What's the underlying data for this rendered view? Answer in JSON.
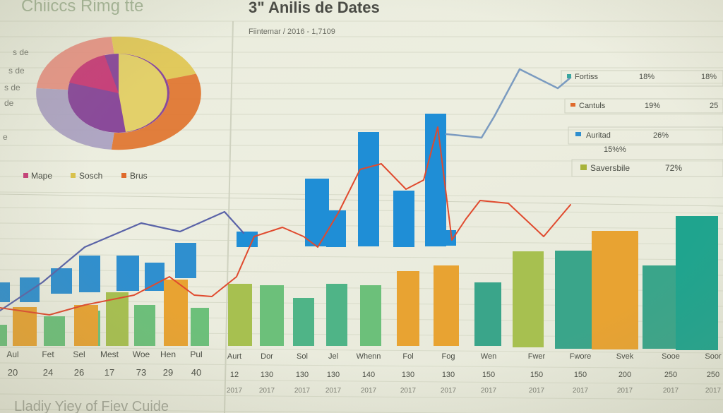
{
  "header": {
    "left_title": "Chiiccs Rimg tte",
    "main_title": "3\" Anilis de Dates",
    "subtitle": "Fiintemar / 2016 - 1,7109",
    "footer_caption": "Lladiy Yiey of Fiev Cuide"
  },
  "pie": {
    "side_labels": [
      "s de",
      "s de",
      "s de",
      "de",
      "e"
    ],
    "legend": [
      {
        "label": "Mape",
        "color": "#c8407a"
      },
      {
        "label": "Sosch",
        "color": "#d9c24c"
      },
      {
        "label": "Brus",
        "color": "#df6a2c"
      }
    ]
  },
  "table": {
    "rows": [
      {
        "label": "Fortiss",
        "color": "#3aa6a0",
        "c1": "18%",
        "c2": "18%"
      },
      {
        "label": "Cantuls",
        "color": "#df6a2c",
        "c1": "19%",
        "c2": "25"
      },
      {
        "label": "Auritad",
        "color": "#2f8fcf",
        "c1": "26%",
        "c2": ""
      },
      {
        "label": "",
        "color": "",
        "c1": "",
        "c2": "",
        "extra": "15%%"
      },
      {
        "label": "Saversbile",
        "color": "#a8b33a",
        "c1": "72%",
        "c2": ""
      }
    ]
  },
  "chart_data": {
    "type": "bar",
    "left_axis": {
      "categories": [
        "Aul",
        "Fet",
        "Sel",
        "Mest",
        "Woe",
        "Hen",
        "Pul"
      ],
      "numbers": [
        "20",
        "24",
        "26",
        "17",
        "73",
        "29",
        "40"
      ]
    },
    "right_axis": {
      "categories": [
        "Aurt",
        "Dor",
        "Sol",
        "Jel",
        "Whenn",
        "Fol",
        "Fog",
        "Wen",
        "Fwer",
        "Fwore",
        "Svek",
        "Sooe",
        "Soor"
      ],
      "numbers": [
        "12",
        "130",
        "130",
        "130",
        "140",
        "130",
        "130",
        "150",
        "150",
        "150",
        "200",
        "250",
        "250"
      ],
      "years": [
        "2017",
        "2017",
        "2017",
        "2017",
        "2017",
        "2017",
        "2017",
        "2017",
        "2017",
        "2017",
        "2017",
        "2017",
        "2017"
      ]
    },
    "series": [
      {
        "color": "#2f8fcf",
        "values": [
          52,
          48,
          60,
          55,
          54,
          55,
          62,
          40,
          45,
          42,
          70,
          92,
          82,
          94
        ]
      },
      {
        "color": "#7fb84a",
        "values": [
          28,
          30,
          25,
          42,
          33,
          40,
          24,
          36,
          35,
          28,
          36,
          35,
          34,
          55,
          56
        ]
      },
      {
        "color": "#e8a332",
        "values": [
          26,
          34,
          44,
          38,
          46,
          66,
          60
        ]
      }
    ],
    "line_series": [
      {
        "color": "#5a63a8",
        "values": [
          10,
          30,
          50,
          62,
          70,
          72,
          68,
          60,
          55,
          50,
          62,
          72,
          92,
          86
        ]
      },
      {
        "color": "#e04a2e",
        "values": [
          8,
          12,
          20,
          22,
          24,
          30,
          35,
          45,
          42,
          40,
          55,
          48,
          62,
          58,
          70
        ]
      }
    ]
  }
}
